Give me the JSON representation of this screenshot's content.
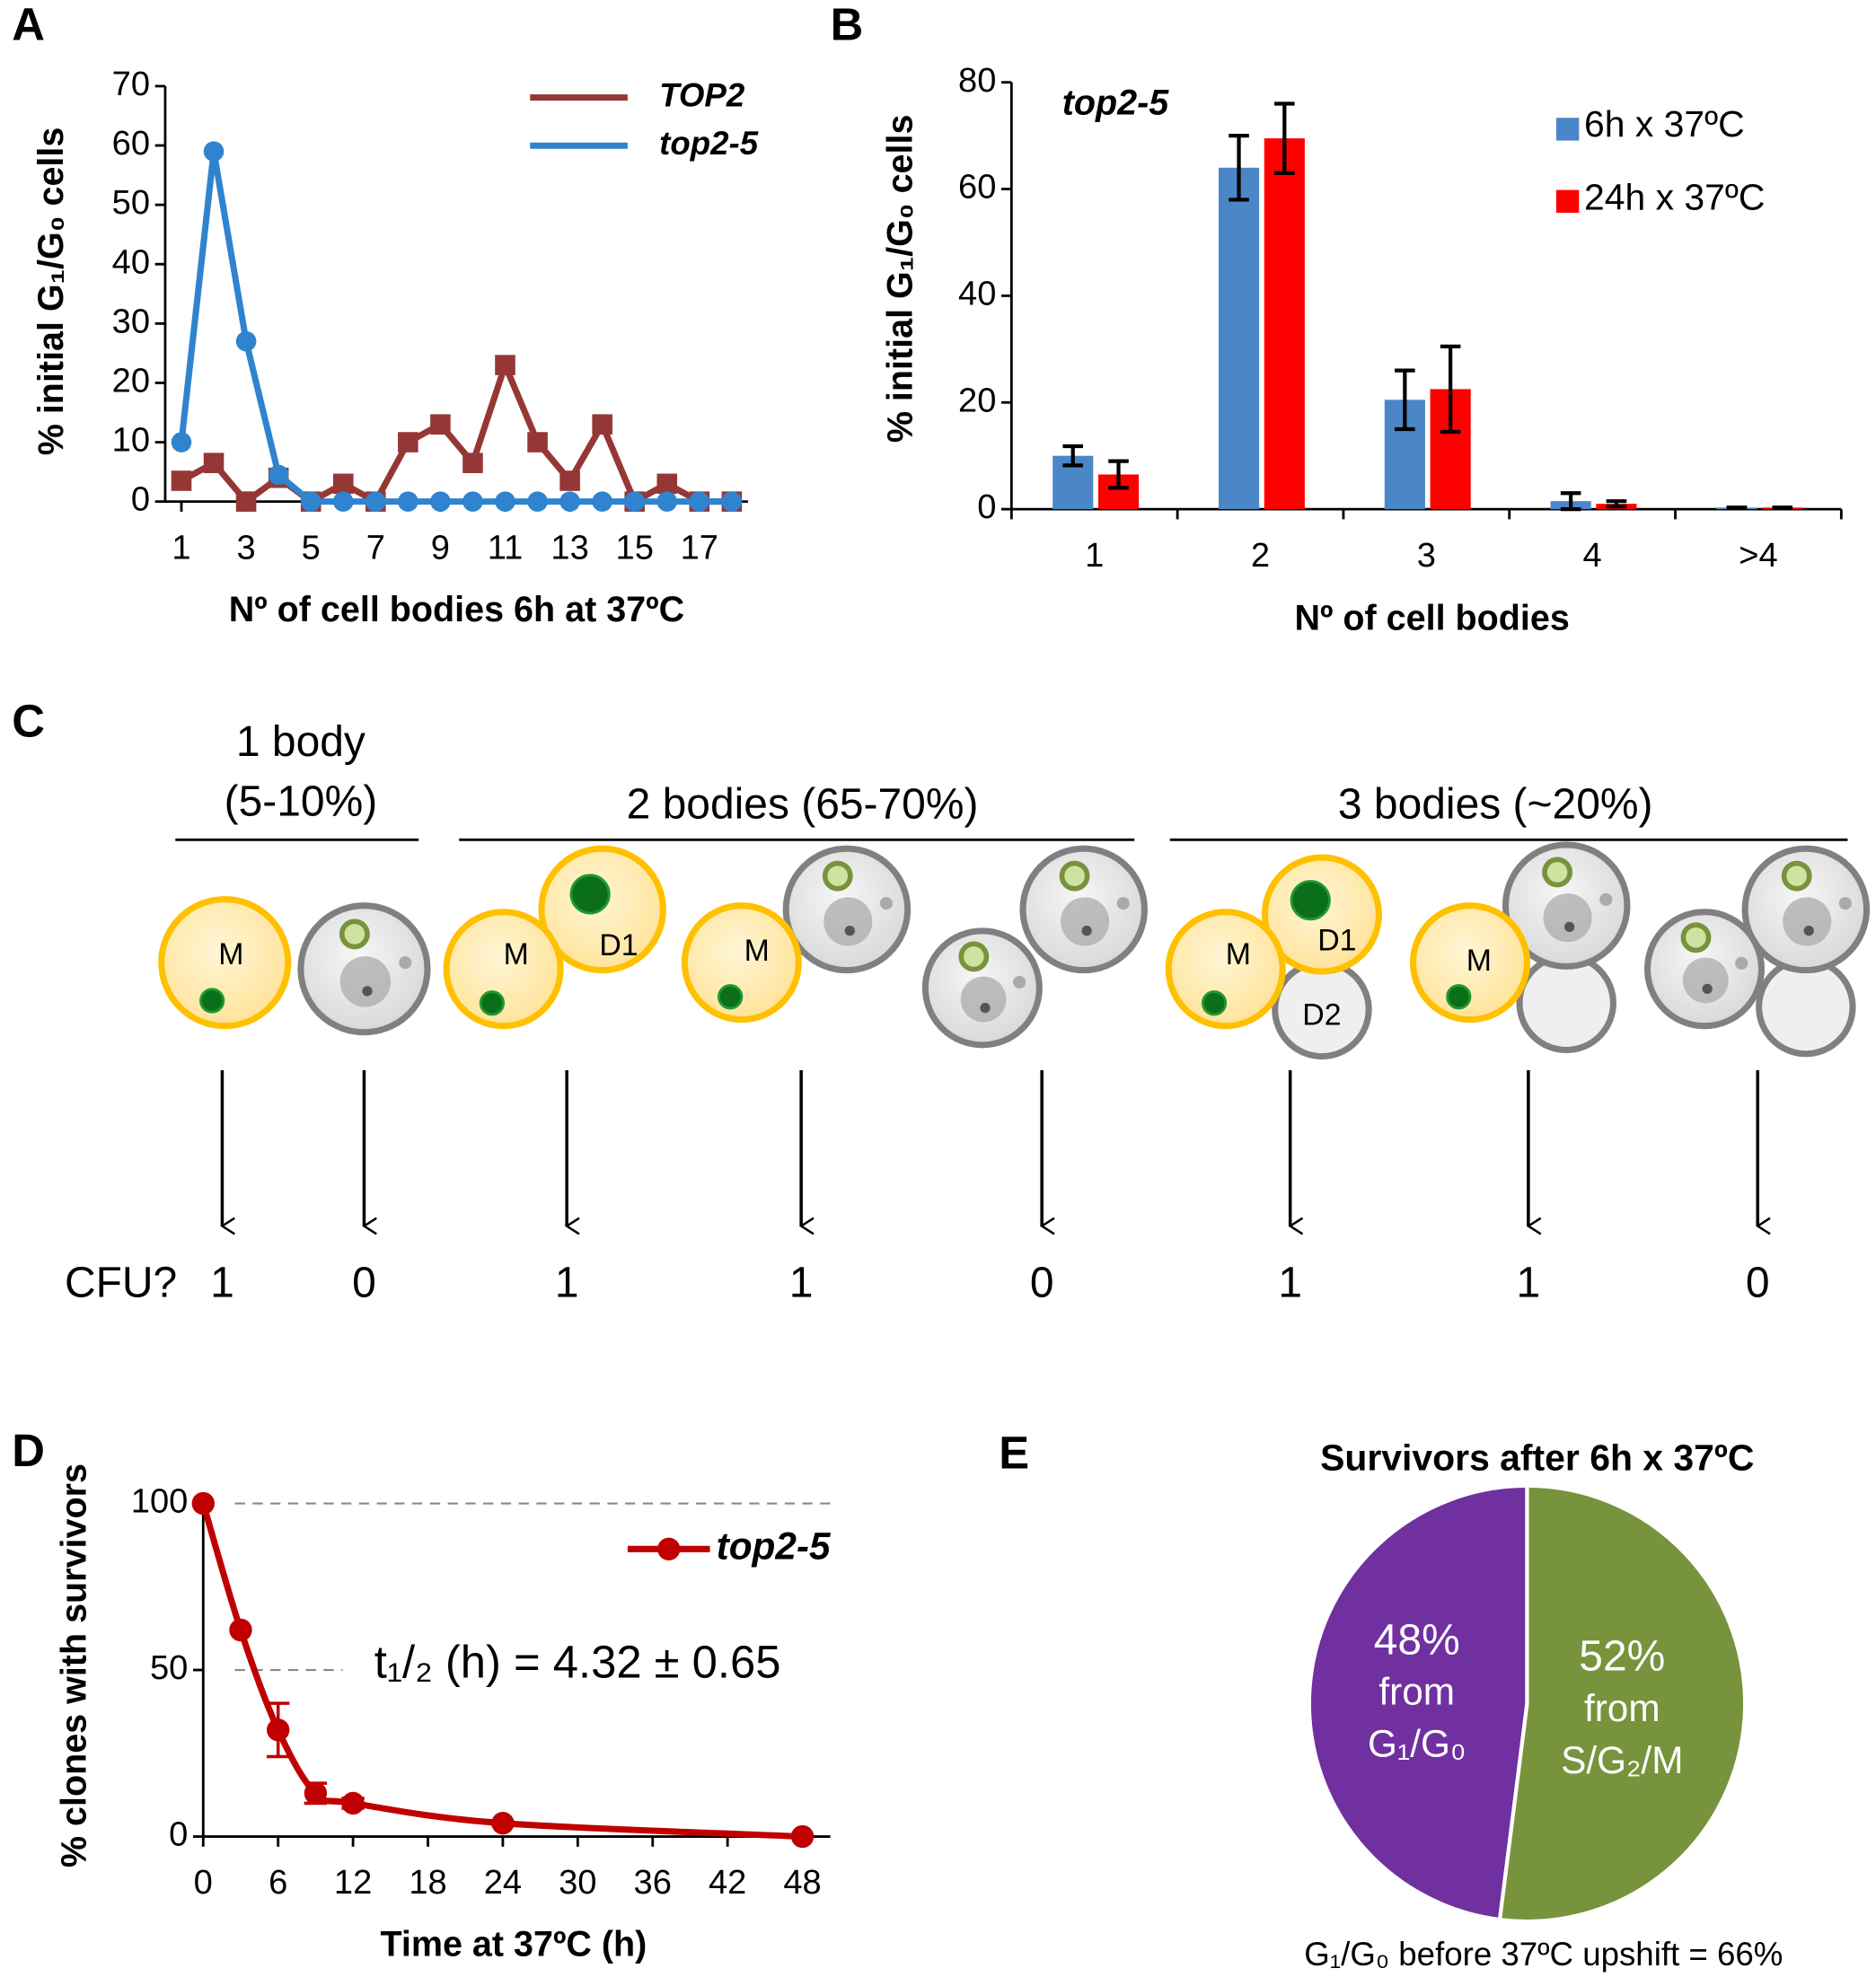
{
  "chart_data": [
    {
      "panel": "A",
      "type": "line",
      "x": [
        1,
        2,
        3,
        4,
        5,
        6,
        7,
        8,
        9,
        10,
        11,
        12,
        13,
        14,
        15,
        16,
        17,
        18
      ],
      "series": [
        {
          "name": "TOP2",
          "color": "#953735",
          "marker": "square",
          "values": [
            3.5,
            6.5,
            0,
            4,
            0,
            3,
            0,
            10,
            13,
            6.5,
            23,
            10,
            3.5,
            13,
            0,
            3,
            0,
            0
          ]
        },
        {
          "name": "top2-5",
          "color": "#2f83cf",
          "marker": "circle",
          "values": [
            10,
            59,
            27,
            4.5,
            0,
            0,
            0,
            0,
            0,
            0,
            0,
            0,
            0,
            0,
            0,
            0,
            0,
            0
          ]
        }
      ],
      "xlim": [
        0.5,
        18.5
      ],
      "xticks": [
        1,
        3,
        5,
        7,
        9,
        11,
        13,
        15,
        17
      ],
      "ylim": [
        0,
        70
      ],
      "yticks": [
        0,
        10,
        20,
        30,
        40,
        50,
        60,
        70
      ],
      "xlabel": "Nº of cell bodies 6h at 37ºC",
      "ylabel": "% initial G₁/G₀ cells"
    },
    {
      "panel": "B",
      "type": "bar",
      "annotation": "top2-5",
      "categories": [
        "1",
        "2",
        "3",
        "4",
        ">4"
      ],
      "series": [
        {
          "name": "6h x 37ºC",
          "color": "#4a86c8",
          "values": [
            10,
            64,
            20.5,
            1.5,
            0.3
          ],
          "errors": [
            1.8,
            6,
            5.5,
            1.5,
            0
          ]
        },
        {
          "name": "24h x 37ºC",
          "color": "#ff0000",
          "values": [
            6.5,
            69.5,
            22.5,
            1,
            0.3
          ],
          "errors": [
            2.5,
            6.5,
            8,
            0.5,
            0
          ]
        }
      ],
      "ylim": [
        0,
        80
      ],
      "yticks": [
        0,
        20,
        40,
        60,
        80
      ],
      "xlabel": "Nº of cell bodies",
      "ylabel": "% initial G₁/G₀ cells"
    },
    {
      "panel": "D",
      "type": "line",
      "smooth": true,
      "x": [
        0,
        3,
        6,
        9,
        12,
        24,
        48
      ],
      "series": [
        {
          "name": "top2-5",
          "color": "#c00000",
          "marker": "circle",
          "values": [
            100,
            62,
            32,
            13,
            10,
            4,
            0
          ],
          "errors": [
            0,
            0,
            8,
            3,
            1.5,
            0.5,
            0
          ]
        }
      ],
      "xlim": [
        0,
        48
      ],
      "xticks": [
        0,
        6,
        12,
        18,
        24,
        30,
        36,
        42,
        48
      ],
      "ylim": [
        0,
        100
      ],
      "yticks": [
        0,
        50,
        100
      ],
      "grid": "dashed",
      "annotation": "t₁/₂ (h) = 4.32 ± 0.65",
      "xlabel": "Time at 37ºC (h)",
      "ylabel": "% clones with survivors"
    },
    {
      "panel": "E",
      "type": "pie",
      "title": "Survivors after 6h x 37ºC",
      "values": [
        48,
        52
      ],
      "value_labels": [
        "48%",
        "52%"
      ],
      "slice_text": [
        [
          "from",
          "G₁/G₀"
        ],
        [
          "from",
          "S/G₂/M"
        ]
      ],
      "colors": [
        "#7030a0",
        "#77933c"
      ],
      "footnote": "G₁/G₀ before 37ºC upshift = 66%"
    }
  ],
  "diagram": {
    "panel": "C",
    "groups": [
      [
        "1 body",
        "(5-10%)"
      ],
      [
        "2 bodies (65-70%)"
      ],
      [
        "3 bodies (~20%)"
      ]
    ],
    "cfu_label": "CFU?",
    "columns": [
      {
        "labels": [
          "M"
        ],
        "cfu": 1
      },
      {
        "labels": [],
        "cfu": 0
      },
      {
        "labels": [
          "M",
          "D1"
        ],
        "cfu": 1
      },
      {
        "labels": [
          "M"
        ],
        "cfu": 1
      },
      {
        "labels": [],
        "cfu": 0
      },
      {
        "labels": [
          "M",
          "D1",
          "D2"
        ],
        "cfu": 1
      },
      {
        "labels": [
          "M"
        ],
        "cfu": 1
      },
      {
        "labels": [],
        "cfu": 0
      }
    ]
  }
}
